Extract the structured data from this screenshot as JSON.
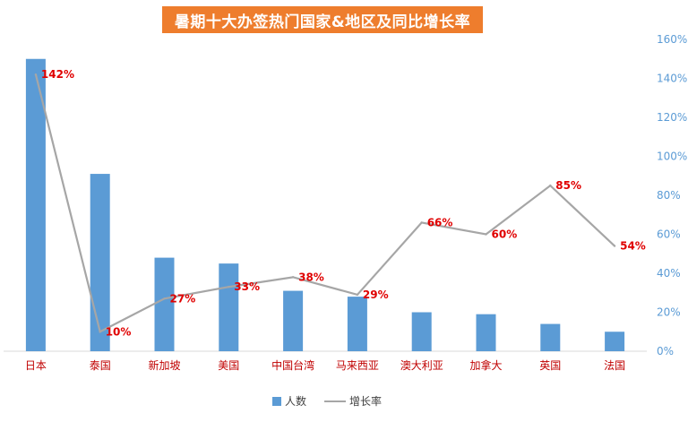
{
  "chart_data": {
    "type": "bar",
    "title": "暑期十大办签热门国家&地区及同比增长率",
    "categories": [
      "日本",
      "泰国",
      "新加坡",
      "美国",
      "中国台湾",
      "马来西亚",
      "澳大利亚",
      "加拿大",
      "英国",
      "法国"
    ],
    "series": [
      {
        "name": "人数",
        "type": "bar",
        "axis": "left",
        "color": "#5b9bd5",
        "values": [
          150,
          91,
          48,
          45,
          31,
          28,
          20,
          19,
          14,
          10
        ]
      },
      {
        "name": "增长率",
        "type": "line",
        "axis": "right",
        "color": "#a6a6a6",
        "values": [
          142,
          10,
          27,
          33,
          38,
          29,
          66,
          60,
          85,
          54
        ],
        "data_labels": [
          "142%",
          "10%",
          "27%",
          "33%",
          "38%",
          "29%",
          "66%",
          "60%",
          "85%",
          "54%"
        ]
      }
    ],
    "y2_ticks": [
      "0%",
      "20%",
      "40%",
      "60%",
      "80%",
      "100%",
      "120%",
      "140%",
      "160%"
    ],
    "ylim": [
      0,
      160
    ],
    "y2lim": [
      0,
      160
    ],
    "grid": false,
    "legend_position": "bottom",
    "title_style": {
      "background": "#ee7d2d",
      "color": "#ffffff"
    },
    "colors": {
      "category_label": "#c00000",
      "data_label": "#e00000",
      "axis_tick": "#5b9bd5"
    }
  }
}
